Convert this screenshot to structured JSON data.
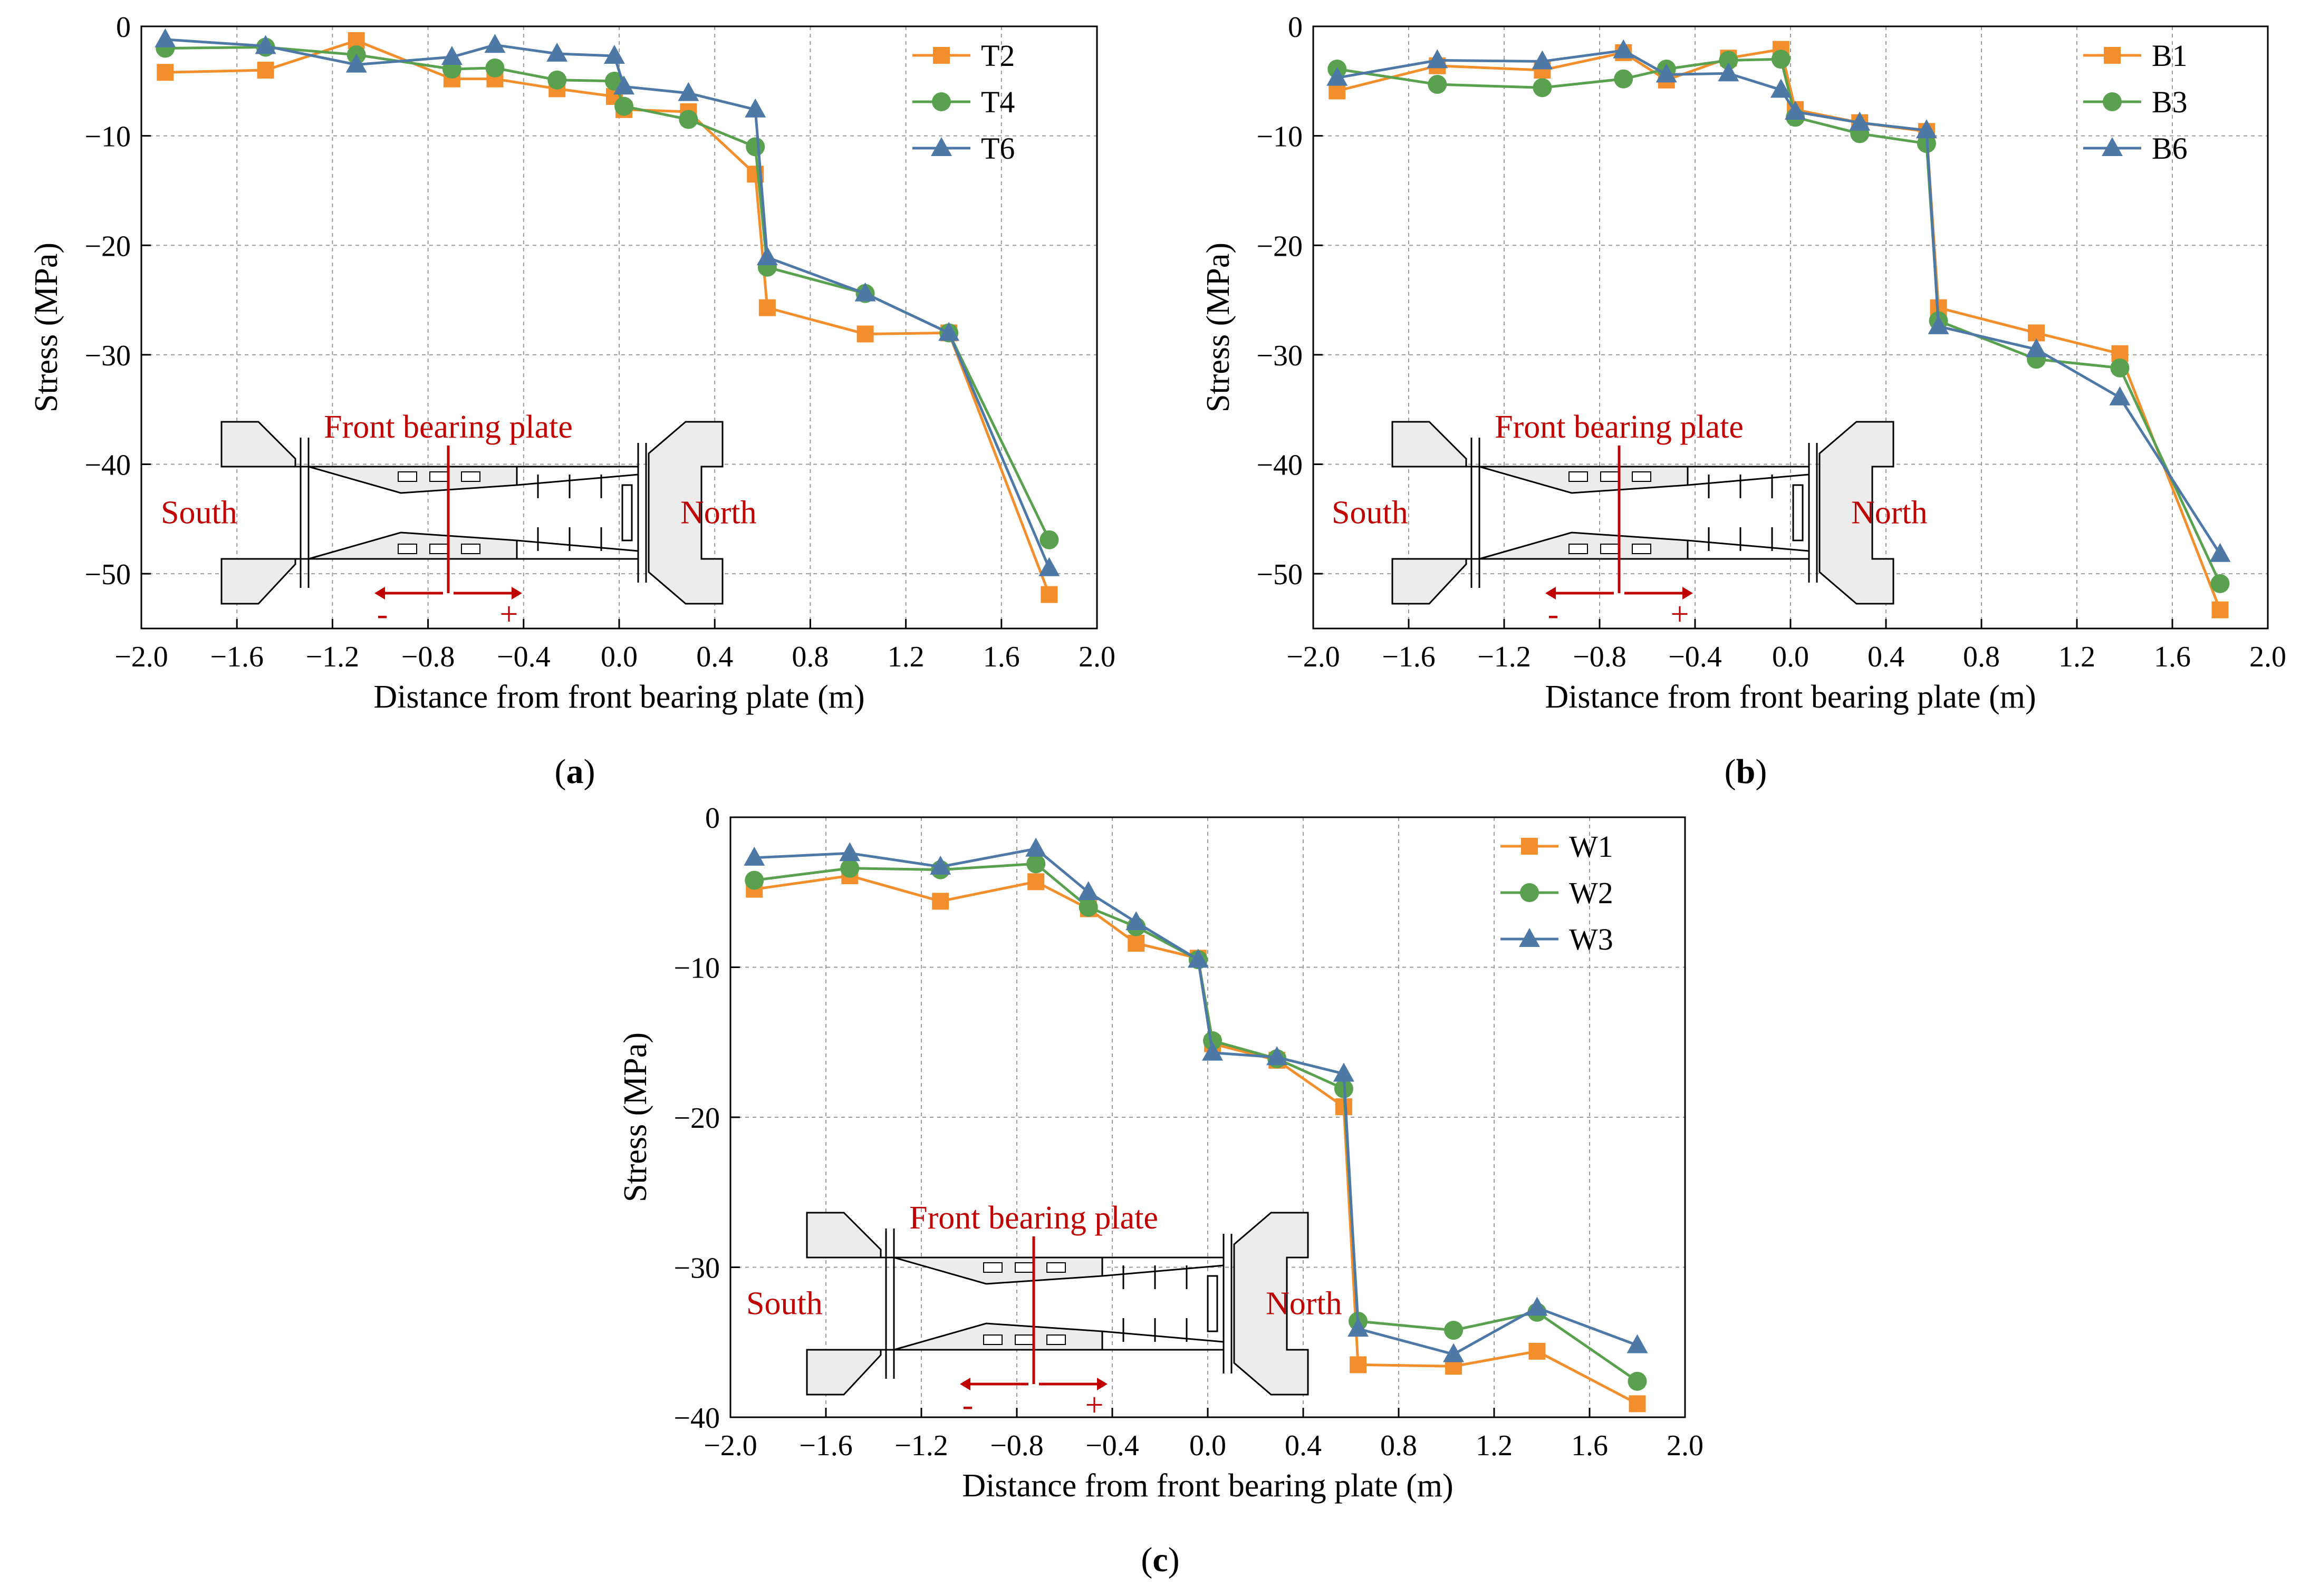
{
  "figure": {
    "colors": {
      "orange": "#F28E2B",
      "green": "#59A14F",
      "blue": "#4E79A7",
      "red": "#C00000",
      "grid": "#9a9a9a"
    },
    "inset": {
      "title": "Front bearing plate",
      "left_label": "South",
      "right_label": "North",
      "minus": "-",
      "plus": "+"
    }
  },
  "chart_data": [
    {
      "type": "line",
      "panel_label": "a",
      "xlabel": "Distance from front bearing plate (m)",
      "ylabel": "Stress (MPa)",
      "xlim": [
        -2.0,
        2.0
      ],
      "ylim": [
        -55,
        0
      ],
      "xticks": [
        "−2.0",
        "−1.6",
        "−1.2",
        "−0.8",
        "−0.4",
        "0.0",
        "0.4",
        "0.8",
        "1.2",
        "1.6",
        "2.0"
      ],
      "yticks": [
        "0",
        "−10",
        "−20",
        "−30",
        "−40",
        "−50"
      ],
      "series": [
        {
          "name": "T2",
          "marker": "square",
          "color": "#F28E2B",
          "x": [
            -1.9,
            -1.48,
            -1.1,
            -0.7,
            -0.52,
            -0.26,
            -0.02,
            0.02,
            0.29,
            0.57,
            0.62,
            1.03,
            1.38,
            1.8
          ],
          "y": [
            -4.2,
            -4.0,
            -1.3,
            -4.8,
            -4.8,
            -5.7,
            -6.4,
            -7.6,
            -7.8,
            -13.5,
            -25.7,
            -28.1,
            -28.0,
            -51.9
          ]
        },
        {
          "name": "T4",
          "marker": "circle",
          "color": "#59A14F",
          "x": [
            -1.9,
            -1.48,
            -1.1,
            -0.7,
            -0.52,
            -0.26,
            -0.02,
            0.02,
            0.29,
            0.57,
            0.62,
            1.03,
            1.38,
            1.8
          ],
          "y": [
            -2.0,
            -1.9,
            -2.6,
            -3.9,
            -3.8,
            -4.9,
            -5.0,
            -7.3,
            -8.5,
            -11.0,
            -22.0,
            -24.4,
            -28.0,
            -46.9
          ]
        },
        {
          "name": "T6",
          "marker": "triangle",
          "color": "#4E79A7",
          "x": [
            -1.9,
            -1.48,
            -1.1,
            -0.7,
            -0.52,
            -0.26,
            -0.02,
            0.02,
            0.29,
            0.57,
            0.62,
            1.03,
            1.38,
            1.8
          ],
          "y": [
            -1.2,
            -1.8,
            -3.5,
            -2.8,
            -1.7,
            -2.5,
            -2.7,
            -5.5,
            -6.1,
            -7.6,
            -21.1,
            -24.4,
            -28.0,
            -49.5
          ]
        }
      ]
    },
    {
      "type": "line",
      "panel_label": "b",
      "xlabel": "Distance from front bearing plate (m)",
      "ylabel": "Stress (MPa)",
      "xlim": [
        -2.0,
        2.0
      ],
      "ylim": [
        -55,
        0
      ],
      "xticks": [
        "−2.0",
        "−1.6",
        "−1.2",
        "−0.8",
        "−0.4",
        "0.0",
        "0.4",
        "0.8",
        "1.2",
        "1.6",
        "2.0"
      ],
      "yticks": [
        "0",
        "−10",
        "−20",
        "−30",
        "−40",
        "−50"
      ],
      "series": [
        {
          "name": "B1",
          "marker": "square",
          "color": "#F28E2B",
          "x": [
            -1.9,
            -1.48,
            -1.04,
            -0.7,
            -0.52,
            -0.26,
            -0.04,
            0.02,
            0.29,
            0.57,
            0.62,
            1.03,
            1.38,
            1.8
          ],
          "y": [
            -5.9,
            -3.6,
            -4.0,
            -2.4,
            -4.9,
            -2.9,
            -2.1,
            -7.6,
            -8.8,
            -9.6,
            -25.7,
            -28.0,
            -29.9,
            -53.3
          ]
        },
        {
          "name": "B3",
          "marker": "circle",
          "color": "#59A14F",
          "x": [
            -1.9,
            -1.48,
            -1.04,
            -0.7,
            -0.52,
            -0.26,
            -0.04,
            0.02,
            0.29,
            0.57,
            0.62,
            1.03,
            1.38,
            1.8
          ],
          "y": [
            -3.9,
            -5.3,
            -5.6,
            -4.8,
            -3.9,
            -3.1,
            -3.0,
            -8.3,
            -9.8,
            -10.7,
            -26.9,
            -30.4,
            -31.2,
            -50.9
          ]
        },
        {
          "name": "B6",
          "marker": "triangle",
          "color": "#4E79A7",
          "x": [
            -1.9,
            -1.48,
            -1.04,
            -0.7,
            -0.52,
            -0.26,
            -0.04,
            0.02,
            0.29,
            0.57,
            0.62,
            1.03,
            1.38,
            1.8
          ],
          "y": [
            -4.7,
            -3.1,
            -3.2,
            -2.2,
            -4.4,
            -4.3,
            -5.8,
            -7.8,
            -8.8,
            -9.5,
            -27.4,
            -29.5,
            -33.9,
            -48.2
          ]
        }
      ]
    },
    {
      "type": "line",
      "panel_label": "c",
      "xlabel": "Distance from front bearing plate (m)",
      "ylabel": "Stress (MPa)",
      "xlim": [
        -2.0,
        2.0
      ],
      "ylim": [
        -40,
        0
      ],
      "xticks": [
        "−2.0",
        "−1.6",
        "−1.2",
        "−0.8",
        "−0.4",
        "0.0",
        "0.4",
        "0.8",
        "1.2",
        "1.6",
        "2.0"
      ],
      "yticks": [
        "0",
        "−10",
        "−20",
        "−30",
        "−40"
      ],
      "series": [
        {
          "name": "W1",
          "marker": "square",
          "color": "#F28E2B",
          "x": [
            -1.9,
            -1.5,
            -1.12,
            -0.72,
            -0.5,
            -0.3,
            -0.04,
            0.02,
            0.29,
            0.57,
            0.63,
            1.03,
            1.38,
            1.8
          ],
          "y": [
            -4.8,
            -3.9,
            -5.6,
            -4.3,
            -6.1,
            -8.4,
            -9.4,
            -15.1,
            -16.2,
            -19.3,
            -36.5,
            -36.6,
            -35.6,
            -39.1
          ]
        },
        {
          "name": "W2",
          "marker": "circle",
          "color": "#59A14F",
          "x": [
            -1.9,
            -1.5,
            -1.12,
            -0.72,
            -0.5,
            -0.3,
            -0.04,
            0.02,
            0.29,
            0.57,
            0.63,
            1.03,
            1.38,
            1.8
          ],
          "y": [
            -4.2,
            -3.4,
            -3.5,
            -3.1,
            -6.0,
            -7.3,
            -9.5,
            -14.9,
            -16.1,
            -18.1,
            -33.6,
            -34.2,
            -33.0,
            -37.6
          ]
        },
        {
          "name": "W3",
          "marker": "triangle",
          "color": "#4E79A7",
          "x": [
            -1.9,
            -1.5,
            -1.12,
            -0.72,
            -0.5,
            -0.3,
            -0.04,
            0.02,
            0.29,
            0.57,
            0.63,
            1.03,
            1.38,
            1.8
          ],
          "y": [
            -2.7,
            -2.4,
            -3.3,
            -2.1,
            -5.0,
            -7.0,
            -9.5,
            -15.7,
            -16.0,
            -17.1,
            -34.1,
            -35.8,
            -32.7,
            -35.2
          ]
        }
      ]
    }
  ]
}
